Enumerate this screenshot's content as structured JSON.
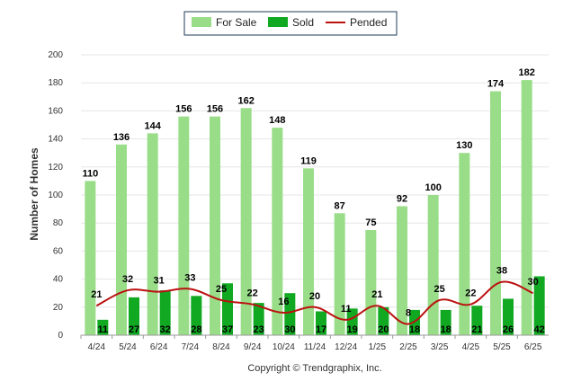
{
  "chart_data": {
    "type": "bar",
    "categories": [
      "4/24",
      "5/24",
      "6/24",
      "7/24",
      "8/24",
      "9/24",
      "10/24",
      "11/24",
      "12/24",
      "1/25",
      "2/25",
      "3/25",
      "4/25",
      "5/25",
      "6/25"
    ],
    "series": [
      {
        "name": "For Sale",
        "kind": "bar",
        "color": "#99dd88",
        "values": [
          110,
          136,
          144,
          156,
          156,
          162,
          148,
          119,
          87,
          75,
          92,
          100,
          130,
          174,
          182
        ]
      },
      {
        "name": "Sold",
        "kind": "bar",
        "color": "#11a822",
        "values": [
          11,
          27,
          32,
          28,
          37,
          23,
          30,
          17,
          19,
          20,
          18,
          18,
          21,
          26,
          42
        ]
      },
      {
        "name": "Pended",
        "kind": "line",
        "color": "#bb1111",
        "values": [
          21,
          32,
          31,
          33,
          25,
          22,
          16,
          20,
          11,
          21,
          8,
          25,
          22,
          38,
          30
        ]
      }
    ],
    "ylabel": "Number of Homes",
    "ylim": [
      0,
      200
    ],
    "yticks": [
      0,
      20,
      40,
      60,
      80,
      100,
      120,
      140,
      160,
      180,
      200
    ],
    "grid": true,
    "legend_position": "top-center"
  },
  "footer": "Copyright © Trendgraphix, Inc."
}
